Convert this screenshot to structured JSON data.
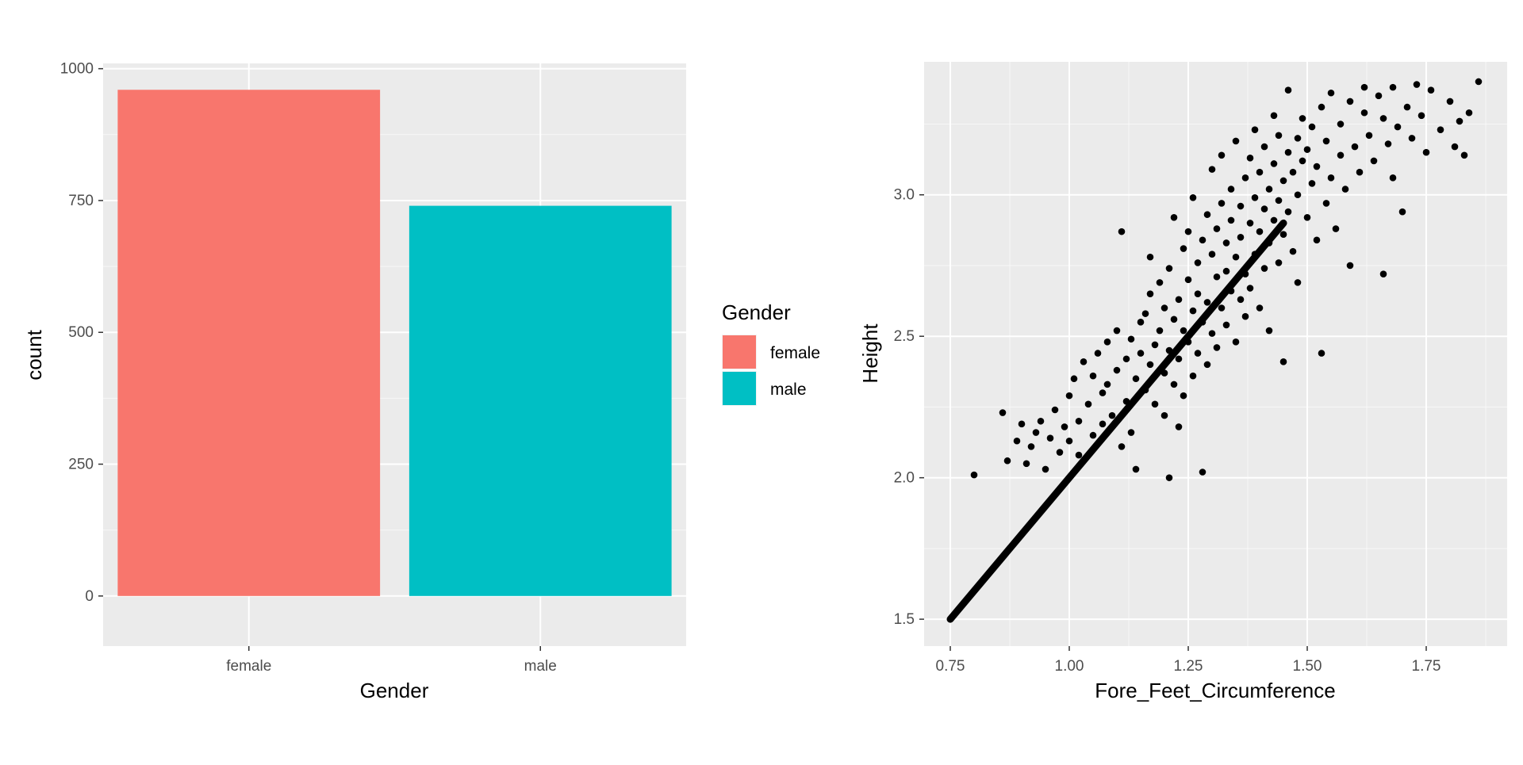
{
  "colors": {
    "panel_background": "#ebebeb",
    "grid": "#ffffff",
    "female": "#f8766d",
    "male": "#00bfc4",
    "points": "#000000"
  },
  "chart_data": [
    {
      "type": "bar",
      "categories": [
        "female",
        "male"
      ],
      "values": [
        960,
        740
      ],
      "xlabel": "Gender",
      "ylabel": "count",
      "ylim": [
        -95,
        1010
      ],
      "yticks": [
        0,
        250,
        500,
        750,
        1000
      ],
      "grid": true,
      "legend": {
        "title": "Gender",
        "placement": "right",
        "items": [
          {
            "label": "female",
            "color": "#f8766d"
          },
          {
            "label": "male",
            "color": "#00bfc4"
          }
        ]
      }
    },
    {
      "type": "scatter",
      "xlabel": "Fore_Feet_Circumference",
      "ylabel": "Height",
      "xlim": [
        0.695,
        1.92
      ],
      "ylim": [
        1.405,
        3.47
      ],
      "xticks": [
        0.75,
        1.0,
        1.25,
        1.5,
        1.75
      ],
      "xtick_labels": [
        "0.75",
        "1.00",
        "1.25",
        "1.50",
        "1.75"
      ],
      "yticks": [
        1.5,
        2.0,
        2.5,
        3.0
      ],
      "ytick_labels": [
        "1.5",
        "2.0",
        "2.5",
        "3.0"
      ],
      "grid": true,
      "line": {
        "x_start": 0.75,
        "x_end": 1.45,
        "slope": 2.0,
        "intercept": 0.0
      },
      "points": [
        [
          0.8,
          2.01
        ],
        [
          0.86,
          2.23
        ],
        [
          0.87,
          2.06
        ],
        [
          0.89,
          2.13
        ],
        [
          0.9,
          2.19
        ],
        [
          0.91,
          2.05
        ],
        [
          0.92,
          2.11
        ],
        [
          0.93,
          2.16
        ],
        [
          0.94,
          2.2
        ],
        [
          0.95,
          2.03
        ],
        [
          0.96,
          2.14
        ],
        [
          0.97,
          2.24
        ],
        [
          0.98,
          2.09
        ],
        [
          0.99,
          2.18
        ],
        [
          1.0,
          2.29
        ],
        [
          1.0,
          2.13
        ],
        [
          1.01,
          2.35
        ],
        [
          1.02,
          2.2
        ],
        [
          1.02,
          2.08
        ],
        [
          1.03,
          2.41
        ],
        [
          1.04,
          2.26
        ],
        [
          1.05,
          2.15
        ],
        [
          1.05,
          2.36
        ],
        [
          1.06,
          2.44
        ],
        [
          1.07,
          2.3
        ],
        [
          1.07,
          2.19
        ],
        [
          1.08,
          2.48
        ],
        [
          1.08,
          2.33
        ],
        [
          1.09,
          2.22
        ],
        [
          1.1,
          2.52
        ],
        [
          1.1,
          2.38
        ],
        [
          1.11,
          2.87
        ],
        [
          1.11,
          2.11
        ],
        [
          1.12,
          2.42
        ],
        [
          1.12,
          2.27
        ],
        [
          1.13,
          2.49
        ],
        [
          1.13,
          2.16
        ],
        [
          1.14,
          2.35
        ],
        [
          1.14,
          2.03
        ],
        [
          1.15,
          2.55
        ],
        [
          1.15,
          2.44
        ],
        [
          1.16,
          2.58
        ],
        [
          1.16,
          2.31
        ],
        [
          1.17,
          2.4
        ],
        [
          1.17,
          2.65
        ],
        [
          1.17,
          2.78
        ],
        [
          1.18,
          2.47
        ],
        [
          1.18,
          2.26
        ],
        [
          1.19,
          2.52
        ],
        [
          1.19,
          2.69
        ],
        [
          1.2,
          2.37
        ],
        [
          1.2,
          2.6
        ],
        [
          1.2,
          2.22
        ],
        [
          1.21,
          2.74
        ],
        [
          1.21,
          2.45
        ],
        [
          1.21,
          2.0
        ],
        [
          1.22,
          2.56
        ],
        [
          1.22,
          2.33
        ],
        [
          1.22,
          2.92
        ],
        [
          1.23,
          2.63
        ],
        [
          1.23,
          2.42
        ],
        [
          1.23,
          2.18
        ],
        [
          1.24,
          2.81
        ],
        [
          1.24,
          2.52
        ],
        [
          1.24,
          2.29
        ],
        [
          1.25,
          2.7
        ],
        [
          1.25,
          2.48
        ],
        [
          1.25,
          2.87
        ],
        [
          1.26,
          2.59
        ],
        [
          1.26,
          2.36
        ],
        [
          1.26,
          2.99
        ],
        [
          1.27,
          2.76
        ],
        [
          1.27,
          2.44
        ],
        [
          1.27,
          2.65
        ],
        [
          1.28,
          2.84
        ],
        [
          1.28,
          2.55
        ],
        [
          1.28,
          2.02
        ],
        [
          1.29,
          2.93
        ],
        [
          1.29,
          2.62
        ],
        [
          1.29,
          2.4
        ],
        [
          1.3,
          2.79
        ],
        [
          1.3,
          2.51
        ],
        [
          1.3,
          3.09
        ],
        [
          1.31,
          2.71
        ],
        [
          1.31,
          2.88
        ],
        [
          1.31,
          2.46
        ],
        [
          1.32,
          2.97
        ],
        [
          1.32,
          2.6
        ],
        [
          1.32,
          3.14
        ],
        [
          1.33,
          2.83
        ],
        [
          1.33,
          2.54
        ],
        [
          1.33,
          2.73
        ],
        [
          1.34,
          3.02
        ],
        [
          1.34,
          2.66
        ],
        [
          1.34,
          2.91
        ],
        [
          1.35,
          2.78
        ],
        [
          1.35,
          3.19
        ],
        [
          1.35,
          2.48
        ],
        [
          1.36,
          2.96
        ],
        [
          1.36,
          2.63
        ],
        [
          1.36,
          2.85
        ],
        [
          1.37,
          3.06
        ],
        [
          1.37,
          2.72
        ],
        [
          1.37,
          2.57
        ],
        [
          1.38,
          2.9
        ],
        [
          1.38,
          3.13
        ],
        [
          1.38,
          2.67
        ],
        [
          1.39,
          2.99
        ],
        [
          1.39,
          2.79
        ],
        [
          1.39,
          3.23
        ],
        [
          1.4,
          2.87
        ],
        [
          1.4,
          2.6
        ],
        [
          1.4,
          3.08
        ],
        [
          1.41,
          2.95
        ],
        [
          1.41,
          2.74
        ],
        [
          1.41,
          3.17
        ],
        [
          1.42,
          3.02
        ],
        [
          1.42,
          2.83
        ],
        [
          1.42,
          2.52
        ],
        [
          1.43,
          3.11
        ],
        [
          1.43,
          2.91
        ],
        [
          1.43,
          3.28
        ],
        [
          1.44,
          2.98
        ],
        [
          1.44,
          2.76
        ],
        [
          1.44,
          3.21
        ],
        [
          1.45,
          3.05
        ],
        [
          1.45,
          2.86
        ],
        [
          1.45,
          2.41
        ],
        [
          1.46,
          3.15
        ],
        [
          1.46,
          2.94
        ],
        [
          1.46,
          3.37
        ],
        [
          1.47,
          3.08
        ],
        [
          1.47,
          2.8
        ],
        [
          1.48,
          3.2
        ],
        [
          1.48,
          3.0
        ],
        [
          1.48,
          2.69
        ],
        [
          1.49,
          3.12
        ],
        [
          1.49,
          3.27
        ],
        [
          1.5,
          2.92
        ],
        [
          1.5,
          3.16
        ],
        [
          1.51,
          3.04
        ],
        [
          1.51,
          3.24
        ],
        [
          1.52,
          2.84
        ],
        [
          1.52,
          3.1
        ],
        [
          1.53,
          3.31
        ],
        [
          1.53,
          2.44
        ],
        [
          1.54,
          2.97
        ],
        [
          1.54,
          3.19
        ],
        [
          1.55,
          3.06
        ],
        [
          1.55,
          3.36
        ],
        [
          1.56,
          2.88
        ],
        [
          1.57,
          3.14
        ],
        [
          1.57,
          3.25
        ],
        [
          1.58,
          3.02
        ],
        [
          1.59,
          2.75
        ],
        [
          1.59,
          3.33
        ],
        [
          1.6,
          3.17
        ],
        [
          1.61,
          3.08
        ],
        [
          1.62,
          3.29
        ],
        [
          1.62,
          3.38
        ],
        [
          1.63,
          3.21
        ],
        [
          1.64,
          3.12
        ],
        [
          1.65,
          3.35
        ],
        [
          1.66,
          2.72
        ],
        [
          1.66,
          3.27
        ],
        [
          1.67,
          3.18
        ],
        [
          1.68,
          3.06
        ],
        [
          1.68,
          3.38
        ],
        [
          1.69,
          3.24
        ],
        [
          1.7,
          2.94
        ],
        [
          1.71,
          3.31
        ],
        [
          1.72,
          3.2
        ],
        [
          1.73,
          3.39
        ],
        [
          1.74,
          3.28
        ],
        [
          1.75,
          3.15
        ],
        [
          1.76,
          3.37
        ],
        [
          1.78,
          3.23
        ],
        [
          1.8,
          3.33
        ],
        [
          1.81,
          3.17
        ],
        [
          1.82,
          3.26
        ],
        [
          1.83,
          3.14
        ],
        [
          1.84,
          3.29
        ],
        [
          1.86,
          3.4
        ]
      ]
    }
  ]
}
